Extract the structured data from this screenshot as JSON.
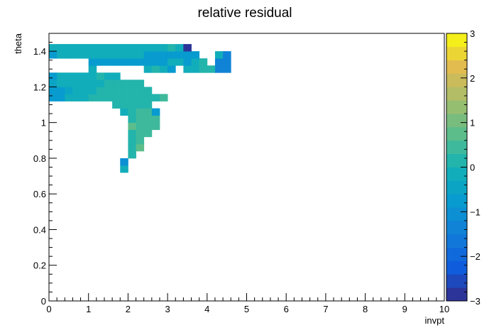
{
  "chart_data": {
    "type": "heatmap",
    "title": "relative residual",
    "xlabel": "invpt",
    "ylabel": "theta",
    "xlim": [
      0,
      10
    ],
    "ylim": [
      0,
      1.5
    ],
    "x_ticks": [
      "0",
      "1",
      "2",
      "3",
      "4",
      "5",
      "6",
      "7",
      "8",
      "9",
      "10"
    ],
    "y_ticks": [
      "0",
      "0.2",
      "0.4",
      "0.6",
      "0.8",
      "1",
      "1.2",
      "1.4"
    ],
    "zlim": [
      -3,
      3
    ],
    "z_ticks": [
      "−3",
      "−2",
      "−1",
      "0",
      "1",
      "2",
      "3"
    ],
    "bin_size": {
      "x": 0.2,
      "y": 0.04
    },
    "bins": [
      {
        "x": 1.8,
        "y": 0.72,
        "z": -0.1
      },
      {
        "x": 1.8,
        "y": 0.76,
        "z": -1.0
      },
      {
        "x": 2.0,
        "y": 0.8,
        "z": 0.3
      },
      {
        "x": 2.0,
        "y": 0.84,
        "z": 0.2
      },
      {
        "x": 2.2,
        "y": 0.84,
        "z": 0.6
      },
      {
        "x": 2.0,
        "y": 0.88,
        "z": 0.3
      },
      {
        "x": 2.2,
        "y": 0.88,
        "z": 0.4
      },
      {
        "x": 2.0,
        "y": 0.92,
        "z": 0.3
      },
      {
        "x": 2.2,
        "y": 0.92,
        "z": 0.4
      },
      {
        "x": 2.4,
        "y": 0.92,
        "z": 0.4
      },
      {
        "x": 2.0,
        "y": 0.96,
        "z": 0.7
      },
      {
        "x": 2.2,
        "y": 0.96,
        "z": 0.4
      },
      {
        "x": 2.4,
        "y": 0.96,
        "z": 0.4
      },
      {
        "x": 2.6,
        "y": 0.96,
        "z": 0.4
      },
      {
        "x": 2.0,
        "y": 1.0,
        "z": 0.3
      },
      {
        "x": 2.2,
        "y": 1.0,
        "z": 0.4
      },
      {
        "x": 2.4,
        "y": 1.0,
        "z": 0.4
      },
      {
        "x": 2.6,
        "y": 1.0,
        "z": 0.4
      },
      {
        "x": 1.8,
        "y": 1.04,
        "z": -0.2
      },
      {
        "x": 2.0,
        "y": 1.04,
        "z": 0.3
      },
      {
        "x": 2.2,
        "y": 1.04,
        "z": 0.4
      },
      {
        "x": 2.4,
        "y": 1.04,
        "z": 0.4
      },
      {
        "x": 2.6,
        "y": 1.04,
        "z": -0.7
      },
      {
        "x": 1.6,
        "y": 1.08,
        "z": 0.2
      },
      {
        "x": 1.8,
        "y": 1.08,
        "z": 0.3
      },
      {
        "x": 2.0,
        "y": 1.08,
        "z": 0.3
      },
      {
        "x": 2.2,
        "y": 1.08,
        "z": 0.3
      },
      {
        "x": 2.4,
        "y": 1.08,
        "z": 0.3
      },
      {
        "x": 0.0,
        "y": 1.12,
        "z": -0.6
      },
      {
        "x": 0.2,
        "y": 1.12,
        "z": -0.6
      },
      {
        "x": 0.4,
        "y": 1.12,
        "z": -0.3
      },
      {
        "x": 0.6,
        "y": 1.12,
        "z": -0.3
      },
      {
        "x": 0.8,
        "y": 1.12,
        "z": -0.1
      },
      {
        "x": 1.0,
        "y": 1.12,
        "z": 0.0
      },
      {
        "x": 1.2,
        "y": 1.12,
        "z": 0.3
      },
      {
        "x": 1.4,
        "y": 1.12,
        "z": 0.3
      },
      {
        "x": 1.6,
        "y": 1.12,
        "z": 0.3
      },
      {
        "x": 1.8,
        "y": 1.12,
        "z": 0.3
      },
      {
        "x": 2.0,
        "y": 1.12,
        "z": 0.3
      },
      {
        "x": 2.2,
        "y": 1.12,
        "z": 0.3
      },
      {
        "x": 2.4,
        "y": 1.12,
        "z": 0.3
      },
      {
        "x": 2.6,
        "y": 1.12,
        "z": 0.3
      },
      {
        "x": 2.8,
        "y": 1.12,
        "z": 0.4
      },
      {
        "x": 0.0,
        "y": 1.16,
        "z": -0.8
      },
      {
        "x": 0.2,
        "y": 1.16,
        "z": -0.6
      },
      {
        "x": 0.4,
        "y": 1.16,
        "z": -0.5
      },
      {
        "x": 0.6,
        "y": 1.16,
        "z": -0.3
      },
      {
        "x": 0.8,
        "y": 1.16,
        "z": -0.3
      },
      {
        "x": 1.0,
        "y": 1.16,
        "z": -0.2
      },
      {
        "x": 1.2,
        "y": 1.16,
        "z": 0.0
      },
      {
        "x": 1.4,
        "y": 1.16,
        "z": 0.0
      },
      {
        "x": 1.6,
        "y": 1.16,
        "z": 0.3
      },
      {
        "x": 1.8,
        "y": 1.16,
        "z": 0.3
      },
      {
        "x": 2.0,
        "y": 1.16,
        "z": 0.3
      },
      {
        "x": 2.2,
        "y": 1.16,
        "z": 0.3
      },
      {
        "x": 2.4,
        "y": 1.16,
        "z": 0.2
      },
      {
        "x": 0.0,
        "y": 1.2,
        "z": -0.5
      },
      {
        "x": 0.2,
        "y": 1.2,
        "z": -0.3
      },
      {
        "x": 0.4,
        "y": 1.2,
        "z": -0.3
      },
      {
        "x": 0.6,
        "y": 1.2,
        "z": -0.1
      },
      {
        "x": 0.8,
        "y": 1.2,
        "z": -0.1
      },
      {
        "x": 1.0,
        "y": 1.2,
        "z": -0.1
      },
      {
        "x": 1.2,
        "y": 1.2,
        "z": -0.1
      },
      {
        "x": 1.4,
        "y": 1.2,
        "z": 0.2
      },
      {
        "x": 1.6,
        "y": 1.2,
        "z": 0.3
      },
      {
        "x": 1.8,
        "y": 1.2,
        "z": 0.3
      },
      {
        "x": 2.0,
        "y": 1.2,
        "z": 0.3
      },
      {
        "x": 2.2,
        "y": 1.2,
        "z": 0.3
      },
      {
        "x": 0.0,
        "y": 1.24,
        "z": -0.6
      },
      {
        "x": 0.2,
        "y": 1.24,
        "z": -0.3
      },
      {
        "x": 0.4,
        "y": 1.24,
        "z": -0.3
      },
      {
        "x": 0.6,
        "y": 1.24,
        "z": -0.1
      },
      {
        "x": 0.8,
        "y": 1.24,
        "z": -0.1
      },
      {
        "x": 1.0,
        "y": 1.24,
        "z": -0.1
      },
      {
        "x": 1.2,
        "y": 1.24,
        "z": 0.0
      },
      {
        "x": 1.4,
        "y": 1.24,
        "z": -0.3
      },
      {
        "x": 1.6,
        "y": 1.24,
        "z": -0.3
      },
      {
        "x": 1.0,
        "y": 1.28,
        "z": -0.3
      },
      {
        "x": 2.4,
        "y": 1.28,
        "z": -0.3
      },
      {
        "x": 2.6,
        "y": 1.28,
        "z": 0.0
      },
      {
        "x": 2.8,
        "y": 1.28,
        "z": -0.3
      },
      {
        "x": 3.0,
        "y": 1.28,
        "z": -0.6
      },
      {
        "x": 3.4,
        "y": 1.28,
        "z": -0.3
      },
      {
        "x": 3.6,
        "y": 1.28,
        "z": -0.3
      },
      {
        "x": 3.8,
        "y": 1.28,
        "z": 0.3
      },
      {
        "x": 4.0,
        "y": 1.28,
        "z": 0.0
      },
      {
        "x": 4.2,
        "y": 1.28,
        "z": -1.3
      },
      {
        "x": 4.4,
        "y": 1.28,
        "z": -1.3
      },
      {
        "x": 1.0,
        "y": 1.32,
        "z": -0.6
      },
      {
        "x": 1.2,
        "y": 1.32,
        "z": -0.6
      },
      {
        "x": 1.4,
        "y": 1.32,
        "z": -0.6
      },
      {
        "x": 1.6,
        "y": 1.32,
        "z": -0.6
      },
      {
        "x": 1.8,
        "y": 1.32,
        "z": -0.6
      },
      {
        "x": 2.0,
        "y": 1.32,
        "z": -0.6
      },
      {
        "x": 2.2,
        "y": 1.32,
        "z": -0.6
      },
      {
        "x": 2.4,
        "y": 1.32,
        "z": -0.6
      },
      {
        "x": 2.6,
        "y": 1.32,
        "z": -0.6
      },
      {
        "x": 2.8,
        "y": 1.32,
        "z": -0.6
      },
      {
        "x": 3.0,
        "y": 1.32,
        "z": -0.3
      },
      {
        "x": 3.2,
        "y": 1.32,
        "z": -0.3
      },
      {
        "x": 3.4,
        "y": 1.32,
        "z": -0.6
      },
      {
        "x": 3.6,
        "y": 1.32,
        "z": -0.3
      },
      {
        "x": 3.8,
        "y": 1.32,
        "z": 0.0
      },
      {
        "x": 4.2,
        "y": 1.32,
        "z": -1.3
      },
      {
        "x": 4.4,
        "y": 1.32,
        "z": -1.3
      },
      {
        "x": 0.0,
        "y": 1.36,
        "z": -0.6
      },
      {
        "x": 0.2,
        "y": 1.36,
        "z": -0.3
      },
      {
        "x": 0.4,
        "y": 1.36,
        "z": -0.3
      },
      {
        "x": 0.6,
        "y": 1.36,
        "z": -0.3
      },
      {
        "x": 0.8,
        "y": 1.36,
        "z": -0.3
      },
      {
        "x": 1.0,
        "y": 1.36,
        "z": -0.3
      },
      {
        "x": 1.2,
        "y": 1.36,
        "z": -0.3
      },
      {
        "x": 1.4,
        "y": 1.36,
        "z": -0.3
      },
      {
        "x": 1.6,
        "y": 1.36,
        "z": -0.3
      },
      {
        "x": 1.8,
        "y": 1.36,
        "z": -0.3
      },
      {
        "x": 2.0,
        "y": 1.36,
        "z": -0.3
      },
      {
        "x": 2.2,
        "y": 1.36,
        "z": -0.3
      },
      {
        "x": 2.4,
        "y": 1.36,
        "z": -0.6
      },
      {
        "x": 2.6,
        "y": 1.36,
        "z": -0.6
      },
      {
        "x": 2.8,
        "y": 1.36,
        "z": -0.6
      },
      {
        "x": 3.0,
        "y": 1.36,
        "z": -0.6
      },
      {
        "x": 3.2,
        "y": 1.36,
        "z": -0.6
      },
      {
        "x": 3.4,
        "y": 1.36,
        "z": -0.6
      },
      {
        "x": 3.6,
        "y": 1.36,
        "z": -0.6
      },
      {
        "x": 4.2,
        "y": 1.36,
        "z": -0.3
      },
      {
        "x": 4.4,
        "y": 1.36,
        "z": -1.3
      },
      {
        "x": 0.0,
        "y": 1.4,
        "z": -0.3
      },
      {
        "x": 0.2,
        "y": 1.4,
        "z": -0.3
      },
      {
        "x": 0.4,
        "y": 1.4,
        "z": -0.3
      },
      {
        "x": 0.6,
        "y": 1.4,
        "z": -0.3
      },
      {
        "x": 0.8,
        "y": 1.4,
        "z": -0.3
      },
      {
        "x": 1.0,
        "y": 1.4,
        "z": -0.3
      },
      {
        "x": 1.2,
        "y": 1.4,
        "z": -0.3
      },
      {
        "x": 1.4,
        "y": 1.4,
        "z": -0.3
      },
      {
        "x": 1.6,
        "y": 1.4,
        "z": -0.3
      },
      {
        "x": 1.8,
        "y": 1.4,
        "z": -0.3
      },
      {
        "x": 2.0,
        "y": 1.4,
        "z": -0.3
      },
      {
        "x": 2.2,
        "y": 1.4,
        "z": -0.3
      },
      {
        "x": 2.4,
        "y": 1.4,
        "z": -0.3
      },
      {
        "x": 2.6,
        "y": 1.4,
        "z": -0.3
      },
      {
        "x": 2.8,
        "y": 1.4,
        "z": -0.3
      },
      {
        "x": 3.0,
        "y": 1.4,
        "z": 0.3
      },
      {
        "x": 3.2,
        "y": 1.4,
        "z": -0.3
      },
      {
        "x": 3.4,
        "y": 1.4,
        "z": -2.8
      }
    ]
  }
}
